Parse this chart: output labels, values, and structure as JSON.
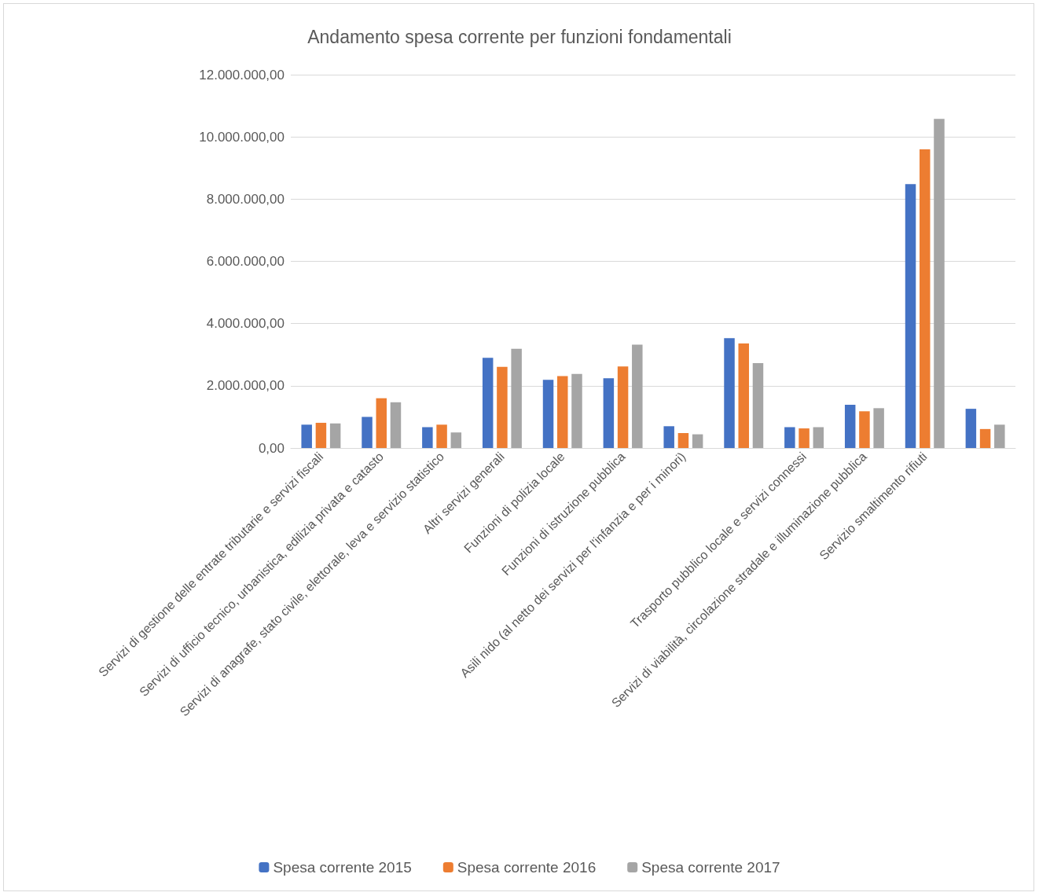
{
  "chart_data": {
    "type": "bar",
    "title": "Andamento spesa corrente per funzioni fondamentali",
    "categories": [
      "Servizi di gestione delle entrate tributarie e servizi fiscali",
      "Servizi di ufficio tecnico, urbanistica, edilizia privata e catasto",
      "Servizi di anagrafe, stato civile, elettorale, leva e servizio statistico",
      "Altri servizi generali",
      "Funzioni di polizia locale",
      "Funzioni di istruzione pubblica",
      "Asili nido (al netto dei servizi per l'infanzia e per i minori)",
      null,
      "Trasporto pubblico locale e servizi connessi",
      "Servizi di viabilità, circolazione stradale e illuminazione pubblica",
      "Servizio smaltimento rifiuti",
      null
    ],
    "series": [
      {
        "name": "Spesa corrente 2015",
        "color": "#4472c4",
        "values": [
          750000,
          1000000,
          670000,
          2900000,
          2190000,
          2240000,
          700000,
          3530000,
          670000,
          1390000,
          8480000,
          1260000
        ]
      },
      {
        "name": "Spesa corrente 2016",
        "color": "#ed7d31",
        "values": [
          810000,
          1600000,
          750000,
          2610000,
          2310000,
          2620000,
          480000,
          3360000,
          630000,
          1180000,
          9600000,
          610000
        ]
      },
      {
        "name": "Spesa corrente 2017",
        "color": "#a5a5a5",
        "values": [
          790000,
          1470000,
          500000,
          3190000,
          2380000,
          3320000,
          440000,
          2730000,
          670000,
          1280000,
          10580000,
          750000
        ]
      }
    ],
    "ylim": [
      0,
      12000000
    ],
    "yticks": [
      {
        "value": 0,
        "label": "0,00"
      },
      {
        "value": 2000000,
        "label": "2.000.000,00"
      },
      {
        "value": 4000000,
        "label": "4.000.000,00"
      },
      {
        "value": 6000000,
        "label": "6.000.000,00"
      },
      {
        "value": 8000000,
        "label": "8.000.000,00"
      },
      {
        "value": 10000000,
        "label": "10.000.000,00"
      },
      {
        "value": 12000000,
        "label": "12.000.000,00"
      }
    ],
    "grid": "y",
    "legend": "bottom"
  }
}
